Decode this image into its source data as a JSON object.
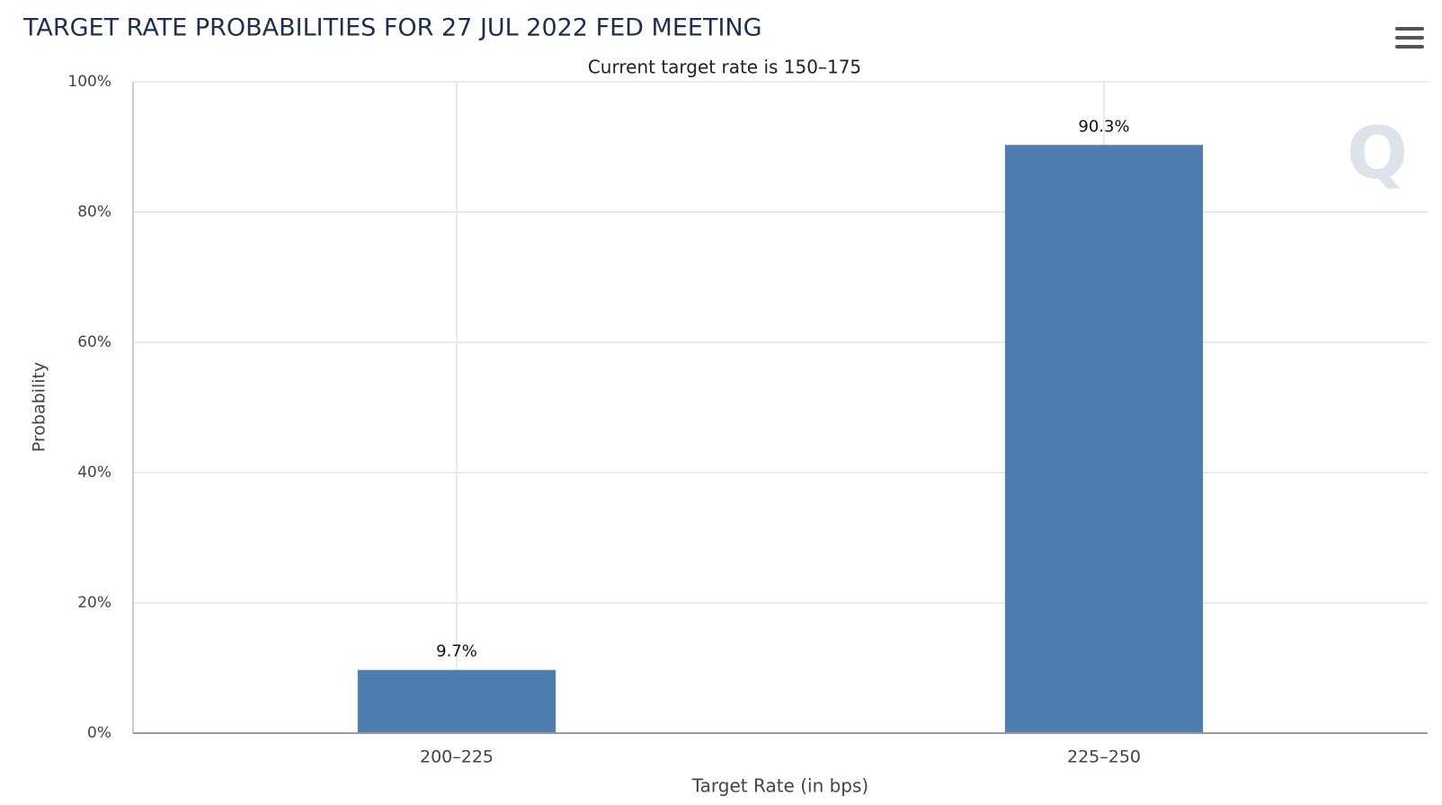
{
  "chart_data": {
    "type": "bar",
    "title": "TARGET RATE PROBABILITIES FOR 27 JUL 2022 FED MEETING",
    "subtitle": "Current target rate is 150–175",
    "x_label": "Target Rate (in bps)",
    "y_label": "Probability",
    "categories": [
      "200–225",
      "225–250"
    ],
    "values": [
      9.7,
      90.3
    ],
    "value_labels": [
      "9.7%",
      "90.3%"
    ],
    "color": "#4e7db0",
    "ylim": [
      0,
      100
    ],
    "yticks": [
      {
        "value": 0,
        "label": "0%"
      },
      {
        "value": 20,
        "label": "20%"
      },
      {
        "value": 40,
        "label": "40%"
      },
      {
        "value": 60,
        "label": "60%"
      },
      {
        "value": 80,
        "label": "80%"
      },
      {
        "value": 100,
        "label": "100%"
      }
    ],
    "grid": true
  }
}
